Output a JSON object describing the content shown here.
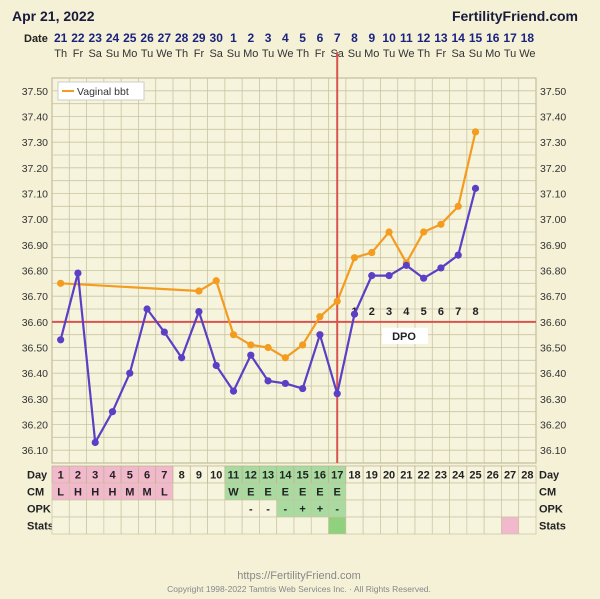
{
  "header": {
    "date": "Apr 21, 2022",
    "brand": "FertilityFriend.com",
    "date_row_label": "Date"
  },
  "colors": {
    "background": "#f4f1d7",
    "grid": "#c9c4a2",
    "vaginal_bbt": "#f39c1f",
    "primary_bbt": "#5b3fc4",
    "coverline": "#d9534f",
    "ovulation_line": "#d9534f",
    "menstruation_cell": "#f2b8cc",
    "fertile_cell": "#a9dba1",
    "ovulation_cell": "#8fd17c",
    "stats_marker": "#f2b8cc"
  },
  "chart_data": {
    "type": "line",
    "x_dates": [
      "21",
      "22",
      "23",
      "24",
      "25",
      "26",
      "27",
      "28",
      "29",
      "30",
      "1",
      "2",
      "3",
      "4",
      "5",
      "6",
      "7",
      "8",
      "9",
      "10",
      "11",
      "12",
      "13",
      "14",
      "15",
      "16",
      "17",
      "18"
    ],
    "x_weekdays": [
      "Th",
      "Fr",
      "Sa",
      "Su",
      "Mo",
      "Tu",
      "We",
      "Th",
      "Fr",
      "Sa",
      "Su",
      "Mo",
      "Tu",
      "We",
      "Th",
      "Fr",
      "Sa",
      "Su",
      "Mo",
      "Tu",
      "We",
      "Th",
      "Fr",
      "Sa",
      "Su",
      "Mo",
      "Tu",
      "We"
    ],
    "cycle_days": [
      "1",
      "2",
      "3",
      "4",
      "5",
      "6",
      "7",
      "8",
      "9",
      "10",
      "11",
      "12",
      "13",
      "14",
      "15",
      "16",
      "17",
      "18",
      "19",
      "20",
      "21",
      "22",
      "23",
      "24",
      "25",
      "26",
      "27",
      "28"
    ],
    "y_ticks": [
      "37.50",
      "37.40",
      "37.30",
      "37.20",
      "37.10",
      "37.00",
      "36.90",
      "36.80",
      "36.70",
      "36.60",
      "36.50",
      "36.40",
      "36.30",
      "36.20",
      "36.10"
    ],
    "ylim": [
      36.05,
      37.55
    ],
    "series": [
      {
        "name": "Vaginal bbt",
        "color": "#f39c1f",
        "points": [
          [
            1,
            36.75
          ],
          [
            9,
            36.72
          ],
          [
            10,
            36.76
          ],
          [
            11,
            36.55
          ],
          [
            12,
            36.51
          ],
          [
            13,
            36.5
          ],
          [
            14,
            36.46
          ],
          [
            15,
            36.51
          ],
          [
            16,
            36.62
          ],
          [
            17,
            36.68
          ],
          [
            18,
            36.85
          ],
          [
            19,
            36.87
          ],
          [
            20,
            36.95
          ],
          [
            21,
            36.83
          ],
          [
            22,
            36.95
          ],
          [
            23,
            36.98
          ],
          [
            24,
            37.05
          ],
          [
            25,
            37.34
          ]
        ]
      },
      {
        "name": "",
        "color": "#5b3fc4",
        "points": [
          [
            1,
            36.53
          ],
          [
            2,
            36.79
          ],
          [
            3,
            36.13
          ],
          [
            4,
            36.25
          ],
          [
            5,
            36.4
          ],
          [
            6,
            36.65
          ],
          [
            7,
            36.56
          ],
          [
            8,
            36.46
          ],
          [
            9,
            36.64
          ],
          [
            10,
            36.43
          ],
          [
            11,
            36.33
          ],
          [
            12,
            36.47
          ],
          [
            13,
            36.37
          ],
          [
            14,
            36.36
          ],
          [
            15,
            36.34
          ],
          [
            16,
            36.55
          ],
          [
            17,
            36.32
          ],
          [
            18,
            36.63
          ],
          [
            19,
            36.78
          ],
          [
            20,
            36.78
          ],
          [
            21,
            36.82
          ],
          [
            22,
            36.77
          ],
          [
            23,
            36.81
          ],
          [
            24,
            36.86
          ],
          [
            25,
            37.12
          ]
        ]
      }
    ],
    "coverline": 36.6,
    "coverline_label": "DPO",
    "ovulation_day": 17,
    "dpo_labels": [
      "1",
      "2",
      "3",
      "4",
      "5",
      "6",
      "7",
      "8"
    ],
    "dpo_start_day": 18,
    "legend": {
      "text": "Vaginal bbt",
      "position": "top-left"
    },
    "grid": true
  },
  "rows": {
    "day_label": "Day",
    "cm_label": "CM",
    "opk_label": "OPK",
    "stats_label": "Stats",
    "cm": [
      "L",
      "H",
      "H",
      "H",
      "M",
      "M",
      "L",
      "",
      "",
      "",
      "W",
      "E",
      "E",
      "E",
      "E",
      "E",
      "E",
      "",
      "",
      "",
      "",
      "",
      "",
      "",
      "",
      "",
      "",
      ""
    ],
    "cm_cell_type": [
      "m",
      "m",
      "m",
      "m",
      "m",
      "m",
      "m",
      "",
      "",
      "",
      "f",
      "f",
      "f",
      "f",
      "f",
      "f",
      "f",
      "",
      "",
      "",
      "",
      "",
      "",
      "",
      "",
      "",
      "",
      ""
    ],
    "opk": [
      "",
      "",
      "",
      "",
      "",
      "",
      "",
      "",
      "",
      "",
      "",
      "-",
      "-",
      "-",
      "+",
      "+",
      "-",
      "",
      "",
      "",
      "",
      "",
      "",
      "",
      "",
      "",
      "",
      ""
    ],
    "opk_cell_type": [
      "",
      "",
      "",
      "",
      "",
      "",
      "",
      "",
      "",
      "",
      "",
      "",
      "",
      "f",
      "f",
      "f",
      "f",
      "",
      "",
      "",
      "",
      "",
      "",
      "",
      "",
      "",
      "",
      ""
    ],
    "stats_marked_days": [
      17,
      27
    ],
    "day_cell_type": [
      "m",
      "m",
      "m",
      "m",
      "m",
      "m",
      "m",
      "",
      "",
      "",
      "f",
      "f",
      "f",
      "f",
      "f",
      "f",
      "f",
      "",
      "",
      "",
      "",
      "",
      "",
      "",
      "",
      "",
      "",
      ""
    ]
  },
  "footer": {
    "url": "https://FertilityFriend.com",
    "copyright": "Copyright 1998-2022 Tamtris Web Services Inc. · All Rights Reserved."
  }
}
